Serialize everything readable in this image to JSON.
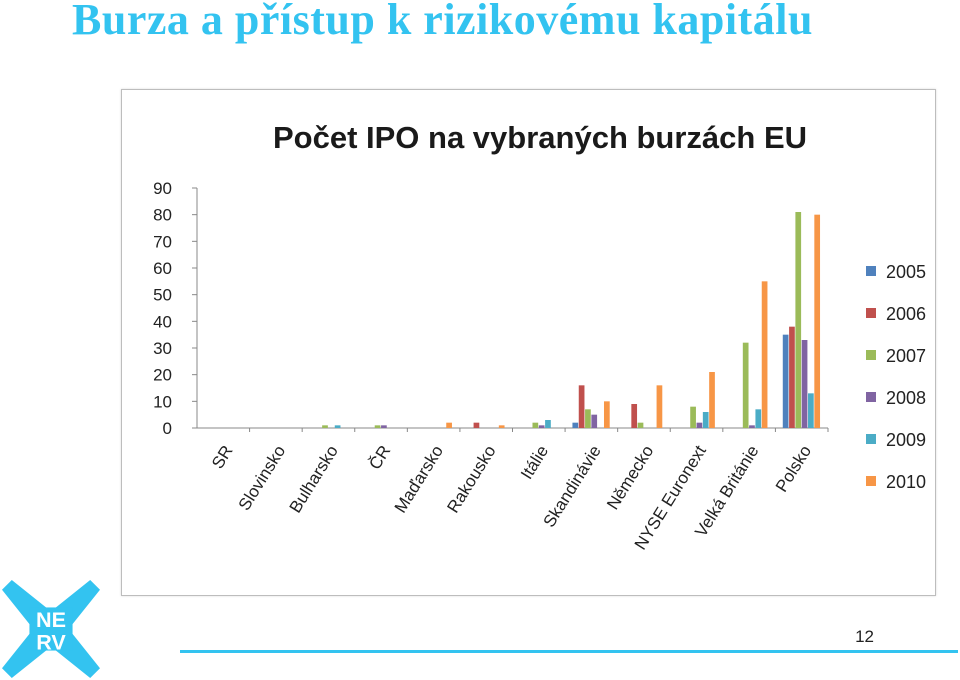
{
  "slide": {
    "title": "Burza a přístup k rizikovému kapitálu",
    "page_number": "12",
    "logo_text": [
      "NE",
      "RV"
    ],
    "accent_color": "#33c3f0"
  },
  "chart_data": {
    "type": "bar",
    "title": "Počet IPO na vybraných burzách EU",
    "xlabel": "",
    "ylabel": "",
    "ylim": [
      0,
      90
    ],
    "yticks": [
      0,
      10,
      20,
      30,
      40,
      50,
      60,
      70,
      80,
      90
    ],
    "grid": false,
    "legend_position": "right",
    "categories": [
      "SR",
      "Slovinsko",
      "Bulharsko",
      "ČR",
      "Maďarsko",
      "Rakousko",
      "Itálie",
      "Skandinávie",
      "Německo",
      "NYSE Euronext",
      "Velká Británie",
      "Polsko"
    ],
    "series": [
      {
        "name": "2005",
        "color": "#4f81bd",
        "values": [
          0,
          0,
          0,
          0,
          0,
          0,
          0,
          2,
          0,
          0,
          0,
          35
        ]
      },
      {
        "name": "2006",
        "color": "#c0504d",
        "values": [
          0,
          0,
          0,
          0,
          0,
          2,
          0,
          16,
          9,
          0,
          0,
          38
        ]
      },
      {
        "name": "2007",
        "color": "#9bbb59",
        "values": [
          0,
          0,
          1,
          1,
          0,
          0,
          2,
          7,
          2,
          8,
          32,
          81
        ]
      },
      {
        "name": "2008",
        "color": "#8064a2",
        "values": [
          0,
          0,
          0,
          1,
          0,
          0,
          1,
          5,
          0,
          2,
          1,
          33
        ]
      },
      {
        "name": "2009",
        "color": "#4bacc6",
        "values": [
          0,
          0,
          1,
          0,
          0,
          0,
          3,
          0,
          0,
          6,
          7,
          13
        ]
      },
      {
        "name": "2010",
        "color": "#f79646",
        "values": [
          0,
          0,
          0,
          0,
          2,
          1,
          0,
          10,
          16,
          21,
          55,
          80
        ]
      }
    ]
  }
}
